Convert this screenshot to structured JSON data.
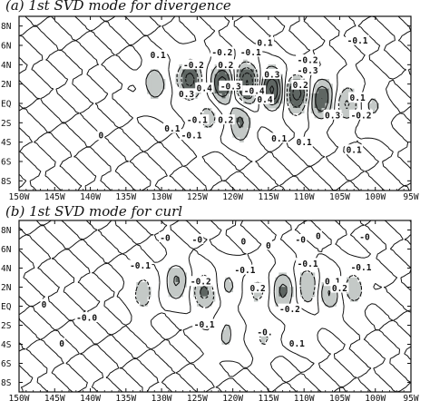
{
  "chart_data": [
    {
      "type": "contour",
      "title": "(a) 1st SVD mode for divergence",
      "xlabel": "",
      "ylabel": "",
      "x_ticks": [
        "150W",
        "145W",
        "140W",
        "135W",
        "130W",
        "125W",
        "120W",
        "115W",
        "110W",
        "105W",
        "100W",
        "95W"
      ],
      "y_ticks": [
        "8N",
        "6N",
        "4N",
        "2N",
        "EQ",
        "2S",
        "4S",
        "6S",
        "8S"
      ],
      "xlim": [
        -150,
        -95
      ],
      "ylim": [
        -9,
        9
      ],
      "contour_interval": 0.1,
      "shading": "light gray beyond ±0.1, dark gray beyond ±0.2; negative contours dashed",
      "contour_labels": [
        {
          "text": "0.1",
          "lon": -130.5,
          "lat": 5.0
        },
        {
          "text": "-0.2",
          "lon": -125.5,
          "lat": 4.0
        },
        {
          "text": "0.3",
          "lon": -126.5,
          "lat": 1.0
        },
        {
          "text": "0.4",
          "lon": -124.0,
          "lat": 1.6
        },
        {
          "text": "-0.2",
          "lon": -121.5,
          "lat": 5.3
        },
        {
          "text": "0.2",
          "lon": -121.0,
          "lat": 4.0
        },
        {
          "text": "-0.1",
          "lon": -117.5,
          "lat": 5.3
        },
        {
          "text": "0.1",
          "lon": -115.5,
          "lat": 6.3
        },
        {
          "text": "0.3",
          "lon": -114.5,
          "lat": 3.0
        },
        {
          "text": "-0.3",
          "lon": -120.3,
          "lat": 1.8
        },
        {
          "text": "-0.4",
          "lon": -117.0,
          "lat": 1.3
        },
        {
          "text": "0.4",
          "lon": -115.5,
          "lat": 0.4
        },
        {
          "text": "-0.2",
          "lon": -109.5,
          "lat": 4.5
        },
        {
          "text": "-0.3",
          "lon": -109.5,
          "lat": 3.4
        },
        {
          "text": "0.2",
          "lon": -110.5,
          "lat": 1.9
        },
        {
          "text": "0.2",
          "lon": -121.0,
          "lat": -1.7
        },
        {
          "text": "-0.1",
          "lon": -125.0,
          "lat": -1.7
        },
        {
          "text": "0.1",
          "lon": -128.5,
          "lat": -2.6
        },
        {
          "text": "-0.1",
          "lon": -125.8,
          "lat": -3.3
        },
        {
          "text": "0.3",
          "lon": -106.0,
          "lat": -1.2
        },
        {
          "text": "-0.2",
          "lon": -102.0,
          "lat": -1.2
        },
        {
          "text": "0.1",
          "lon": -102.5,
          "lat": 0.6
        },
        {
          "text": "0.1",
          "lon": -110.0,
          "lat": -4.0
        },
        {
          "text": "-0.1",
          "lon": -102.5,
          "lat": 6.5
        },
        {
          "text": "0",
          "lon": -138.5,
          "lat": -3.3
        },
        {
          "text": "0.1",
          "lon": -103.0,
          "lat": -4.8
        },
        {
          "text": "0.1",
          "lon": -113.5,
          "lat": -3.6
        }
      ],
      "anomaly_centers": [
        {
          "lon": -131.0,
          "lat": 2.0,
          "value": 0.18
        },
        {
          "lon": -126.0,
          "lat": 2.5,
          "value": -0.35
        },
        {
          "lon": -121.5,
          "lat": 2.0,
          "value": 0.35
        },
        {
          "lon": -118.0,
          "lat": 2.0,
          "value": -0.42
        },
        {
          "lon": -114.5,
          "lat": 1.5,
          "value": 0.42
        },
        {
          "lon": -111.0,
          "lat": 1.0,
          "value": -0.35
        },
        {
          "lon": -107.5,
          "lat": 0.5,
          "value": 0.32
        },
        {
          "lon": -104.0,
          "lat": 0.0,
          "value": -0.22
        },
        {
          "lon": -119.0,
          "lat": -2.0,
          "value": 0.22
        },
        {
          "lon": -123.5,
          "lat": -1.5,
          "value": -0.15
        },
        {
          "lon": -100.5,
          "lat": -0.5,
          "value": 0.12
        }
      ]
    },
    {
      "type": "contour",
      "title": "(b) 1st SVD mode for curl",
      "xlabel": "",
      "ylabel": "",
      "x_ticks": [
        "150W",
        "145W",
        "140W",
        "135W",
        "130W",
        "125W",
        "120W",
        "115W",
        "110W",
        "105W",
        "100W",
        "95W"
      ],
      "y_ticks": [
        "8N",
        "6N",
        "4N",
        "2N",
        "EQ",
        "2S",
        "4S",
        "6S",
        "8S"
      ],
      "xlim": [
        -150,
        -95
      ],
      "ylim": [
        -9,
        9
      ],
      "contour_interval": 0.1,
      "shading": "light gray beyond ±0.1, dark gray beyond ±0.2; negative contours dashed",
      "contour_labels": [
        {
          "text": "-0",
          "lon": -129.5,
          "lat": 7.2
        },
        {
          "text": "-0",
          "lon": -125.0,
          "lat": 7.0
        },
        {
          "text": "0",
          "lon": -118.5,
          "lat": 6.8
        },
        {
          "text": "0",
          "lon": -115.0,
          "lat": 6.4
        },
        {
          "text": "-0",
          "lon": -110.5,
          "lat": 7.0
        },
        {
          "text": "0",
          "lon": -108.0,
          "lat": 7.4
        },
        {
          "text": "-0",
          "lon": -101.5,
          "lat": 7.3
        },
        {
          "text": "-0.1",
          "lon": -133.0,
          "lat": 4.3
        },
        {
          "text": "-0.1",
          "lon": -118.3,
          "lat": 3.8
        },
        {
          "text": "-0.1",
          "lon": -109.5,
          "lat": 4.5
        },
        {
          "text": "-0.1",
          "lon": -102.0,
          "lat": 4.1
        },
        {
          "text": "-0.2",
          "lon": -124.5,
          "lat": 2.6
        },
        {
          "text": "0.2",
          "lon": -116.5,
          "lat": 1.9
        },
        {
          "text": "0.1",
          "lon": -106.0,
          "lat": 2.6
        },
        {
          "text": "0.2",
          "lon": -105.0,
          "lat": 1.9
        },
        {
          "text": "-0.2",
          "lon": -112.0,
          "lat": -0.3
        },
        {
          "text": "-0.1",
          "lon": -124.0,
          "lat": -1.9
        },
        {
          "text": "-0.",
          "lon": -115.5,
          "lat": -2.7
        },
        {
          "text": "0.1",
          "lon": -111.0,
          "lat": -3.9
        },
        {
          "text": "-0.0",
          "lon": -140.5,
          "lat": -1.2
        },
        {
          "text": "0",
          "lon": -144.0,
          "lat": -3.9
        },
        {
          "text": "0",
          "lon": -146.5,
          "lat": 0.2
        }
      ],
      "anomaly_centers": [
        {
          "lon": -132.5,
          "lat": 1.5,
          "value": -0.16
        },
        {
          "lon": -128.0,
          "lat": 2.5,
          "value": 0.22
        },
        {
          "lon": -124.0,
          "lat": 1.5,
          "value": -0.22
        },
        {
          "lon": -120.5,
          "lat": 2.5,
          "value": 0.12
        },
        {
          "lon": -116.5,
          "lat": 1.5,
          "value": -0.14
        },
        {
          "lon": -113.0,
          "lat": 1.5,
          "value": 0.24
        },
        {
          "lon": -109.5,
          "lat": 2.0,
          "value": -0.2
        },
        {
          "lon": -106.5,
          "lat": 1.5,
          "value": 0.2
        },
        {
          "lon": -103.0,
          "lat": 2.0,
          "value": -0.17
        },
        {
          "lon": -121.0,
          "lat": -3.0,
          "value": 0.13
        },
        {
          "lon": -115.5,
          "lat": -3.0,
          "value": -0.12
        },
        {
          "lon": -110.5,
          "lat": -2.5,
          "value": 0.1
        }
      ]
    }
  ]
}
